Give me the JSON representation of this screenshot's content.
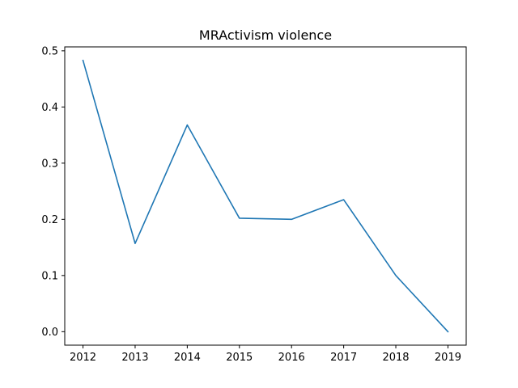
{
  "chart_data": {
    "type": "line",
    "title": "MRActivism violence",
    "xlabel": "",
    "ylabel": "",
    "x": [
      2012,
      2013,
      2014,
      2015,
      2016,
      2017,
      2018,
      2019
    ],
    "series": [
      {
        "values": [
          0.483,
          0.157,
          0.368,
          0.202,
          0.2,
          0.235,
          0.1,
          0.0
        ],
        "color": "#1f77b4"
      }
    ],
    "xticks": [
      "2012",
      "2013",
      "2014",
      "2015",
      "2016",
      "2017",
      "2018",
      "2019"
    ],
    "yticks": [
      "0.0",
      "0.1",
      "0.2",
      "0.3",
      "0.4",
      "0.5"
    ],
    "xlim": [
      2011.65,
      2019.35
    ],
    "ylim": [
      -0.024,
      0.507
    ],
    "grid": false,
    "legend": "none"
  }
}
